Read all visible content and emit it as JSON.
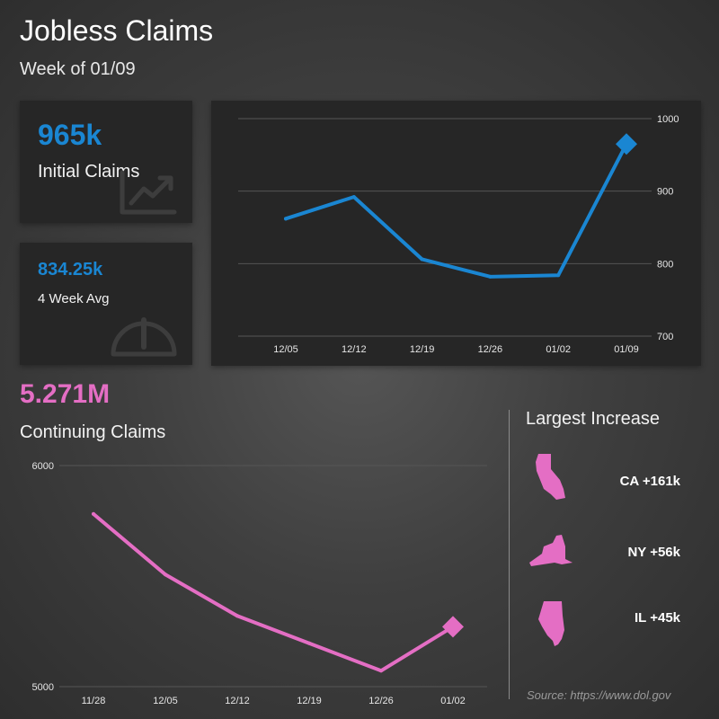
{
  "header": {
    "title": "Jobless Claims",
    "subtitle": "Week of 01/09"
  },
  "initial_card": {
    "value": "965k",
    "label": "Initial Claims",
    "icon": "trend-chart-icon"
  },
  "avg_card": {
    "value": "834.25k",
    "label": "4 Week Avg",
    "icon": "gauge-icon"
  },
  "continuing": {
    "value": "5.271M",
    "label": "Continuing Claims"
  },
  "largest": {
    "title": "Largest Increase",
    "states": [
      {
        "icon": "california-icon",
        "label": "CA +161k"
      },
      {
        "icon": "new-york-icon",
        "label": "NY +56k"
      },
      {
        "icon": "illinois-icon",
        "label": "IL +45k"
      }
    ]
  },
  "source": "Source: https://www.dol.gov",
  "colors": {
    "initial": "#1a86d2",
    "continuing": "#e46ec4",
    "card": "#262626"
  },
  "chart_data": [
    {
      "type": "line",
      "title": "",
      "categories": [
        "12/05",
        "12/12",
        "12/19",
        "12/26",
        "01/02",
        "01/09"
      ],
      "values": [
        862,
        892,
        806,
        782,
        784,
        965
      ],
      "ylim": [
        700,
        1000
      ],
      "yticks": [
        1000,
        900,
        800,
        700
      ],
      "y_axis_side": "right",
      "grid": true,
      "marker_last": "diamond"
    },
    {
      "type": "line",
      "title": "",
      "categories": [
        "11/28",
        "12/05",
        "12/12",
        "12/19",
        "12/26",
        "01/02"
      ],
      "values": [
        5781,
        5507,
        5320,
        5196,
        5072,
        5271
      ],
      "ylim": [
        5000,
        6000
      ],
      "yticks": [
        6000,
        5000
      ],
      "y_axis_side": "left",
      "grid": true,
      "marker_last": "diamond"
    }
  ]
}
